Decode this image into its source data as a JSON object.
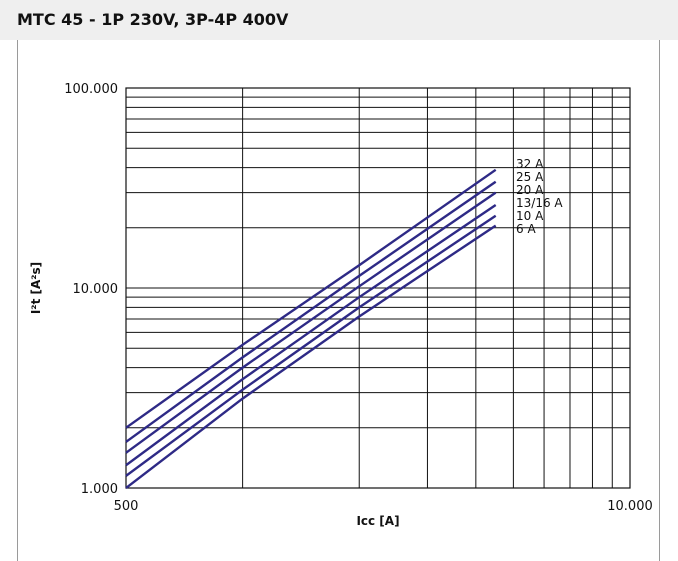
{
  "title": "MTC 45 - 1P 230V, 3P-4P 400V",
  "chart_data": {
    "type": "line",
    "xlabel": "Icc [A]",
    "ylabel": "I²t [A²s]",
    "x_scale": "log",
    "y_scale": "log",
    "xlim": [
      500,
      10000
    ],
    "ylim": [
      1000,
      100000
    ],
    "x_tick_labels": [
      {
        "value": 500,
        "label": "500"
      },
      {
        "value": 10000,
        "label": "10.000"
      }
    ],
    "y_tick_labels": [
      {
        "value": 100000,
        "label": "100.000"
      },
      {
        "value": 10000,
        "label": "10.000"
      },
      {
        "value": 1000,
        "label": "1.000"
      }
    ],
    "grid": true,
    "line_color": "#2e2a86",
    "series": [
      {
        "name": "32 A",
        "x": [
          500,
          1000,
          2000,
          4500
        ],
        "y": [
          2000,
          5200,
          13000,
          39000
        ]
      },
      {
        "name": "25 A",
        "x": [
          500,
          1000,
          2000,
          4500
        ],
        "y": [
          1700,
          4500,
          11500,
          34000
        ]
      },
      {
        "name": "20 A",
        "x": [
          500,
          1000,
          2000,
          4500
        ],
        "y": [
          1500,
          4000,
          10200,
          30000
        ]
      },
      {
        "name": "13/16 A",
        "x": [
          500,
          1000,
          2000,
          4500
        ],
        "y": [
          1300,
          3500,
          9000,
          26000
        ]
      },
      {
        "name": "10 A",
        "x": [
          500,
          1000,
          2000,
          4500
        ],
        "y": [
          1150,
          3100,
          8000,
          23000
        ]
      },
      {
        "name": "6 A",
        "x": [
          500,
          1000,
          2000,
          4500
        ],
        "y": [
          1000,
          2800,
          7200,
          20500
        ]
      }
    ]
  }
}
